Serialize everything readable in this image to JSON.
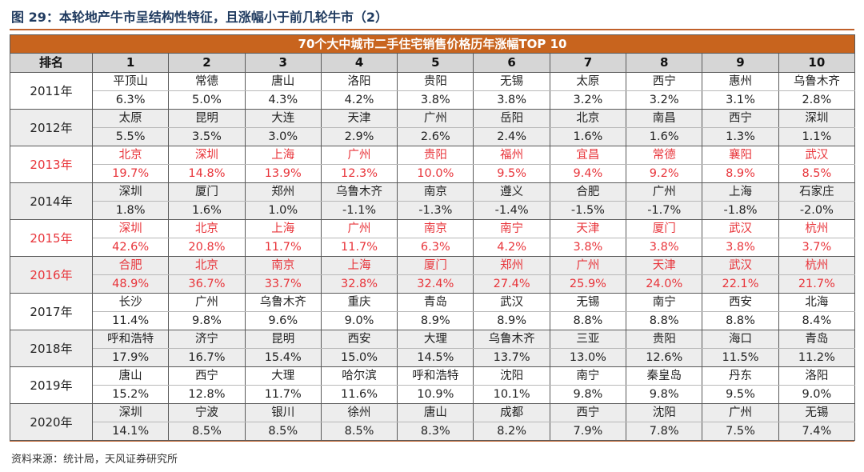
{
  "figure_title": "图 29：本轮地产牛市呈结构性特征，且涨幅小于前几轮牛市（2）",
  "table_title": "70个大中城市二手住宅销售价格历年涨幅TOP 10",
  "header": [
    "排名",
    "1",
    "2",
    "3",
    "4",
    "5",
    "6",
    "7",
    "8",
    "9",
    "10"
  ],
  "highlight_color": "#e8343a",
  "header_bg": "#c8641e",
  "rows": [
    {
      "year": "2011年",
      "highlight": false,
      "cities": [
        "平顶山",
        "常德",
        "唐山",
        "洛阳",
        "贵阳",
        "无锡",
        "太原",
        "西宁",
        "惠州",
        "乌鲁木齐"
      ],
      "pcts": [
        "6.3%",
        "5.0%",
        "4.3%",
        "4.2%",
        "3.8%",
        "3.8%",
        "3.2%",
        "3.2%",
        "3.1%",
        "2.8%"
      ]
    },
    {
      "year": "2012年",
      "highlight": false,
      "cities": [
        "太原",
        "昆明",
        "大连",
        "天津",
        "广州",
        "岳阳",
        "北京",
        "南昌",
        "西宁",
        "深圳"
      ],
      "pcts": [
        "5.5%",
        "3.5%",
        "3.0%",
        "2.9%",
        "2.6%",
        "2.4%",
        "1.6%",
        "1.6%",
        "1.3%",
        "1.1%"
      ]
    },
    {
      "year": "2013年",
      "highlight": true,
      "cities": [
        "北京",
        "深圳",
        "上海",
        "广州",
        "贵阳",
        "福州",
        "宜昌",
        "常德",
        "襄阳",
        "武汉"
      ],
      "pcts": [
        "19.7%",
        "14.8%",
        "13.9%",
        "12.3%",
        "10.0%",
        "9.5%",
        "9.4%",
        "9.2%",
        "8.9%",
        "8.5%"
      ]
    },
    {
      "year": "2014年",
      "highlight": false,
      "cities": [
        "深圳",
        "厦门",
        "郑州",
        "乌鲁木齐",
        "南京",
        "遵义",
        "合肥",
        "广州",
        "上海",
        "石家庄"
      ],
      "pcts": [
        "1.8%",
        "1.6%",
        "1.0%",
        "-1.1%",
        "-1.3%",
        "-1.4%",
        "-1.5%",
        "-1.7%",
        "-1.8%",
        "-2.0%"
      ]
    },
    {
      "year": "2015年",
      "highlight": true,
      "cities": [
        "深圳",
        "北京",
        "上海",
        "广州",
        "南京",
        "南宁",
        "天津",
        "厦门",
        "武汉",
        "杭州"
      ],
      "pcts": [
        "42.6%",
        "20.8%",
        "11.7%",
        "11.7%",
        "6.3%",
        "4.2%",
        "3.8%",
        "3.8%",
        "3.8%",
        "3.7%"
      ]
    },
    {
      "year": "2016年",
      "highlight": true,
      "cities": [
        "合肥",
        "北京",
        "南京",
        "上海",
        "厦门",
        "郑州",
        "广州",
        "天津",
        "武汉",
        "杭州"
      ],
      "pcts": [
        "48.9%",
        "36.7%",
        "33.7%",
        "32.8%",
        "32.4%",
        "27.4%",
        "25.9%",
        "24.0%",
        "22.1%",
        "21.7%"
      ]
    },
    {
      "year": "2017年",
      "highlight": false,
      "cities": [
        "长沙",
        "广州",
        "乌鲁木齐",
        "重庆",
        "青岛",
        "武汉",
        "无锡",
        "南宁",
        "西安",
        "北海"
      ],
      "pcts": [
        "11.4%",
        "9.8%",
        "9.6%",
        "9.0%",
        "8.9%",
        "8.9%",
        "8.8%",
        "8.8%",
        "8.8%",
        "8.4%"
      ]
    },
    {
      "year": "2018年",
      "highlight": false,
      "cities": [
        "呼和浩特",
        "济宁",
        "昆明",
        "西安",
        "大理",
        "乌鲁木齐",
        "三亚",
        "贵阳",
        "海口",
        "青岛"
      ],
      "pcts": [
        "17.9%",
        "16.7%",
        "15.4%",
        "15.0%",
        "14.5%",
        "13.7%",
        "13.0%",
        "12.6%",
        "11.5%",
        "11.2%"
      ]
    },
    {
      "year": "2019年",
      "highlight": false,
      "cities": [
        "唐山",
        "西宁",
        "大理",
        "哈尔滨",
        "呼和浩特",
        "沈阳",
        "南宁",
        "秦皇岛",
        "丹东",
        "洛阳"
      ],
      "pcts": [
        "15.2%",
        "12.8%",
        "11.7%",
        "11.6%",
        "10.9%",
        "10.1%",
        "9.8%",
        "9.8%",
        "9.5%",
        "9.0%"
      ]
    },
    {
      "year": "2020年",
      "highlight": false,
      "cities": [
        "深圳",
        "宁波",
        "银川",
        "徐州",
        "唐山",
        "成都",
        "西宁",
        "沈阳",
        "广州",
        "无锡"
      ],
      "pcts": [
        "14.1%",
        "8.5%",
        "8.5%",
        "8.5%",
        "8.3%",
        "8.2%",
        "7.9%",
        "7.8%",
        "7.5%",
        "7.4%"
      ]
    }
  ],
  "source": "资料来源：统计局，天风证券研究所"
}
